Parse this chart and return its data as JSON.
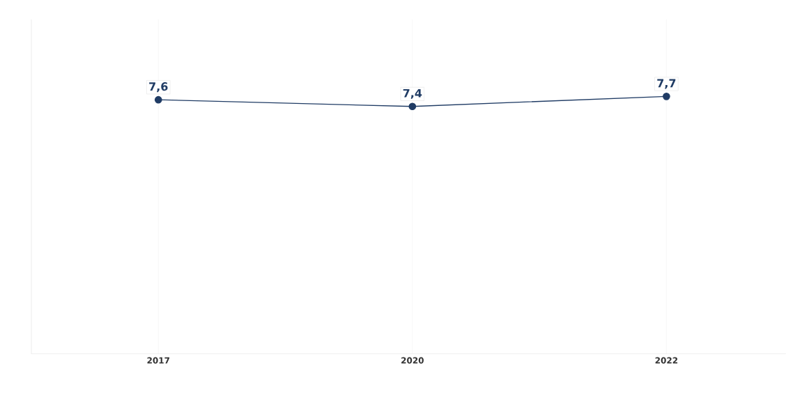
{
  "chart_data": {
    "type": "line",
    "categories": [
      "2017",
      "2020",
      "2022"
    ],
    "series": [
      {
        "color": "#1f3b64",
        "values": [
          7.6,
          7.4,
          7.7
        ],
        "value_labels": [
          "7,6",
          "7,4",
          "7,7"
        ]
      }
    ],
    "ylim": [
      0,
      10
    ],
    "tick_labels": "x",
    "grid": "x",
    "marker": "circle"
  }
}
